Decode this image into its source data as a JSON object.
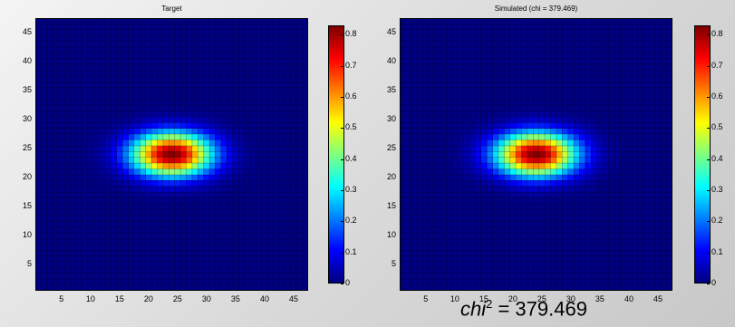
{
  "chart_data": [
    {
      "type": "heatmap",
      "title": "Target",
      "grid_size": [
        47,
        47
      ],
      "x_ticks": [
        5,
        10,
        15,
        20,
        25,
        30,
        35,
        40,
        45
      ],
      "y_ticks": [
        5,
        10,
        15,
        20,
        25,
        30,
        35,
        40,
        45
      ],
      "xlim": [
        0.5,
        47.5
      ],
      "ylim": [
        0.5,
        47.5
      ],
      "peak": {
        "x": 24,
        "y": 24,
        "value": 0.83
      },
      "spread": {
        "sigma_x": 4.8,
        "sigma_y": 2.6
      },
      "colorbar": {
        "min": 0,
        "max": 0.83,
        "ticks": [
          0,
          0.1,
          0.2,
          0.3,
          0.4,
          0.5,
          0.6,
          0.7,
          0.8
        ],
        "colormap": "jet"
      }
    },
    {
      "type": "heatmap",
      "title": "Simulated (chi = 379.469)",
      "grid_size": [
        47,
        47
      ],
      "x_ticks": [
        5,
        10,
        15,
        20,
        25,
        30,
        35,
        40,
        45
      ],
      "y_ticks": [
        5,
        10,
        15,
        20,
        25,
        30,
        35,
        40,
        45
      ],
      "xlim": [
        0.5,
        47.5
      ],
      "ylim": [
        0.5,
        47.5
      ],
      "peak": {
        "x": 24,
        "y": 24,
        "value": 0.83
      },
      "spread": {
        "sigma_x": 4.8,
        "sigma_y": 2.6
      },
      "colorbar": {
        "min": 0,
        "max": 0.83,
        "ticks": [
          0,
          0.1,
          0.2,
          0.3,
          0.4,
          0.5,
          0.6,
          0.7,
          0.8
        ],
        "colormap": "jet"
      }
    }
  ],
  "caption": {
    "prefix": "chi",
    "superscript": "2",
    "value": " = 379.469"
  }
}
